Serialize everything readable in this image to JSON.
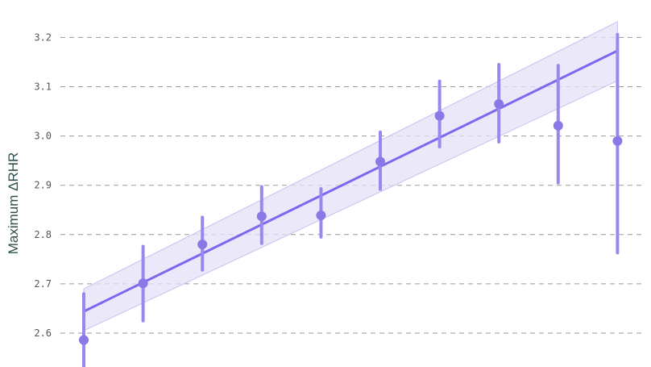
{
  "chart_data": {
    "type": "scatter",
    "title": "",
    "xlabel": "",
    "ylabel": "Maximum ΔRHR",
    "ylim": [
      2.53,
      3.265
    ],
    "xlim": [
      0.5,
      11
    ],
    "y_ticks": [
      2.6,
      2.7,
      2.8,
      2.9,
      3.0,
      3.1,
      3.2
    ],
    "y_tick_labels": [
      "2.6",
      "2.7",
      "2.8",
      "2.9",
      "3.0",
      "3.1",
      "3.2"
    ],
    "grid": "horizontal-dashed",
    "colors": {
      "points": "#8b78e6",
      "errorbars": "#9a88ee",
      "fit_line": "#7b68ee",
      "band_fill": "#e4e0f8",
      "band_edge": "#c9c1ef",
      "grid": "#999999"
    },
    "points": [
      {
        "x": 1,
        "y": 2.586,
        "lower": 2.52,
        "upper": 2.68
      },
      {
        "x": 2,
        "y": 2.701,
        "lower": 2.625,
        "upper": 2.776
      },
      {
        "x": 3,
        "y": 2.78,
        "lower": 2.728,
        "upper": 2.835
      },
      {
        "x": 4,
        "y": 2.837,
        "lower": 2.782,
        "upper": 2.897
      },
      {
        "x": 5,
        "y": 2.839,
        "lower": 2.795,
        "upper": 2.893
      },
      {
        "x": 6,
        "y": 2.948,
        "lower": 2.892,
        "upper": 3.008
      },
      {
        "x": 7,
        "y": 3.041,
        "lower": 2.978,
        "upper": 3.111
      },
      {
        "x": 8,
        "y": 3.065,
        "lower": 2.988,
        "upper": 3.145
      },
      {
        "x": 9,
        "y": 3.021,
        "lower": 2.905,
        "upper": 3.143
      },
      {
        "x": 10,
        "y": 2.99,
        "lower": 2.763,
        "upper": 3.206
      }
    ],
    "fit": {
      "x": [
        1,
        10
      ],
      "y": [
        2.644,
        3.173
      ],
      "band_lower": [
        2.605,
        3.112
      ],
      "band_upper": [
        2.69,
        3.232
      ]
    }
  }
}
